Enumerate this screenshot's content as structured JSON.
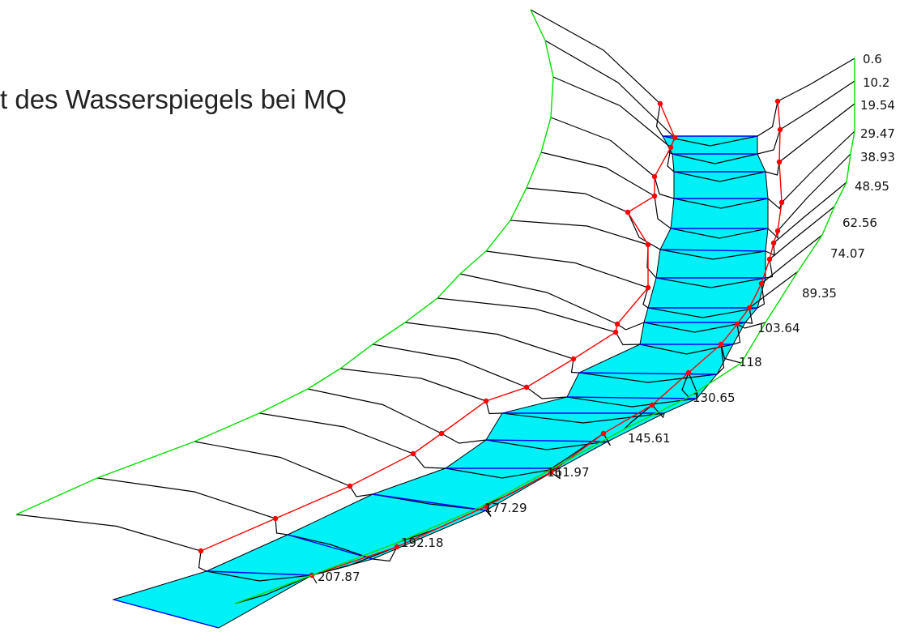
{
  "title": "t des Wasserspiegels bei MQ",
  "stations": [
    "0.6",
    "10.2",
    "19.54",
    "29.47",
    "38.93",
    "48.95",
    "62.56",
    "74.07",
    "89.35",
    "103.64",
    "118",
    "130.65",
    "145.61",
    "161.97",
    "177.29",
    "192.18",
    "207.87"
  ],
  "colors": {
    "water_fill": "#00f0f8",
    "water_line": "#0000ff",
    "bank_line": "#ff0000",
    "outline": "#00e000",
    "section": "#000000"
  }
}
